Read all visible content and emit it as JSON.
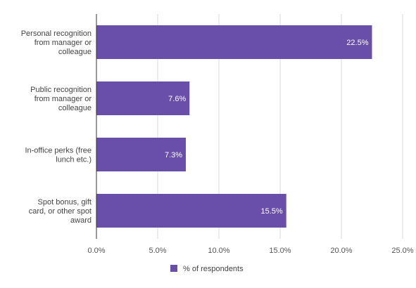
{
  "chart_data": {
    "type": "bar",
    "orientation": "horizontal",
    "categories": [
      "Personal recognition from manager or colleague",
      "Public recognition from manager or colleague",
      "In-office perks (free lunch etc.)",
      "Spot bonus, gift card, or other spot award"
    ],
    "category_label_lines": [
      [
        "Personal recognition",
        "from manager or",
        "colleague"
      ],
      [
        "Public recognition",
        "from manager or",
        "colleague"
      ],
      [
        "In-office perks (free",
        "lunch etc.)"
      ],
      [
        "Spot bonus, gift",
        "card, or other spot",
        "award"
      ]
    ],
    "series": [
      {
        "name": "% of respondents",
        "values": [
          22.5,
          7.6,
          7.3,
          15.5
        ],
        "labels": [
          "22.5%",
          "7.6%",
          "7.3%",
          "15.5%"
        ],
        "color": "#6a4faa"
      }
    ],
    "xlim": [
      0,
      25
    ],
    "x_ticks": [
      0,
      5,
      10,
      15,
      20,
      25
    ],
    "x_tick_labels": [
      "0.0%",
      "5.0%",
      "10.0%",
      "15.0%",
      "20.0%",
      "25.0%"
    ],
    "grid": true,
    "legend_position": "bottom",
    "title": "",
    "xlabel": "",
    "ylabel": ""
  },
  "colors": {
    "bar": "#6a4faa",
    "grid": "#d9d9d9",
    "axis": "#333333"
  }
}
